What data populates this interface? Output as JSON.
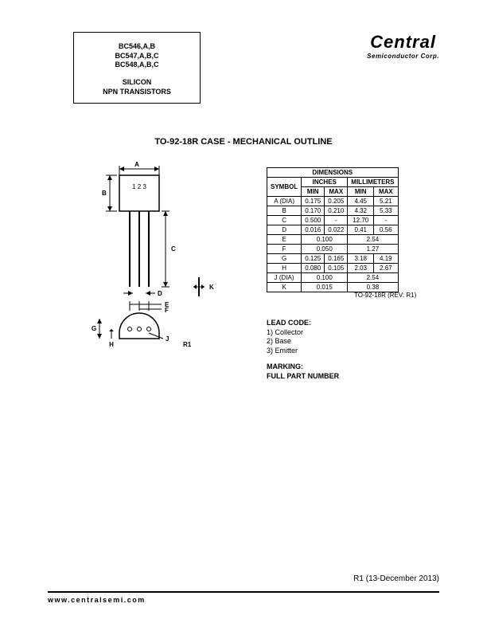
{
  "header_box": {
    "line1": "BC546,A,B",
    "line2": "BC547,A,B,C",
    "line3": "BC548,A,B,C",
    "line4": "SILICON",
    "line5": "NPN TRANSISTORS"
  },
  "logo": {
    "main": "Central",
    "sub": "Semiconductor Corp."
  },
  "page_title": "TO-92-18R CASE - MECHANICAL OUTLINE",
  "diagram": {
    "labels": {
      "A": "A",
      "B": "B",
      "C": "C",
      "D": "D",
      "E": "E",
      "F": "F",
      "G": "G",
      "H": "H",
      "J": "J",
      "K": "K",
      "R1": "R1",
      "pins": "1 2 3"
    }
  },
  "dim_table": {
    "title": "DIMENSIONS",
    "group1": "INCHES",
    "group2": "MILLIMETERS",
    "col_sym": "SYMBOL",
    "col_min": "MIN",
    "col_max": "MAX",
    "rows": [
      {
        "s": "A (DIA)",
        "in_min": "0.175",
        "in_max": "0.205",
        "mm_min": "4.45",
        "mm_max": "5.21"
      },
      {
        "s": "B",
        "in_min": "0.170",
        "in_max": "0.210",
        "mm_min": "4.32",
        "mm_max": "5.33"
      },
      {
        "s": "C",
        "in_min": "0.500",
        "in_max": "-",
        "mm_min": "12.70",
        "mm_max": "-"
      },
      {
        "s": "D",
        "in_min": "0.016",
        "in_max": "0.022",
        "mm_min": "0.41",
        "mm_max": "0.56"
      },
      {
        "s": "E",
        "in_min": "0.100",
        "in_max": "",
        "mm_min": "2.54",
        "mm_max": ""
      },
      {
        "s": "F",
        "in_min": "0.050",
        "in_max": "",
        "mm_min": "1.27",
        "mm_max": ""
      },
      {
        "s": "G",
        "in_min": "0.125",
        "in_max": "0.165",
        "mm_min": "3.18",
        "mm_max": "4.19"
      },
      {
        "s": "H",
        "in_min": "0.080",
        "in_max": "0.105",
        "mm_min": "2.03",
        "mm_max": "2.67"
      },
      {
        "s": "J (DIA)",
        "in_min": "0.100",
        "in_max": "",
        "mm_min": "2.54",
        "mm_max": ""
      },
      {
        "s": "K",
        "in_min": "0.015",
        "in_max": "",
        "mm_min": "0.38",
        "mm_max": ""
      }
    ],
    "caption": "TO-92-18R (REV: R1)"
  },
  "lead_code": {
    "hdr": "LEAD CODE:",
    "l1": "1) Collector",
    "l2": "2) Base",
    "l3": "3) Emitter"
  },
  "marking": {
    "l1": "MARKING:",
    "l2": "FULL PART NUMBER"
  },
  "rev": "R1 (13-December 2013)",
  "footer": "www.centralsemi.com"
}
